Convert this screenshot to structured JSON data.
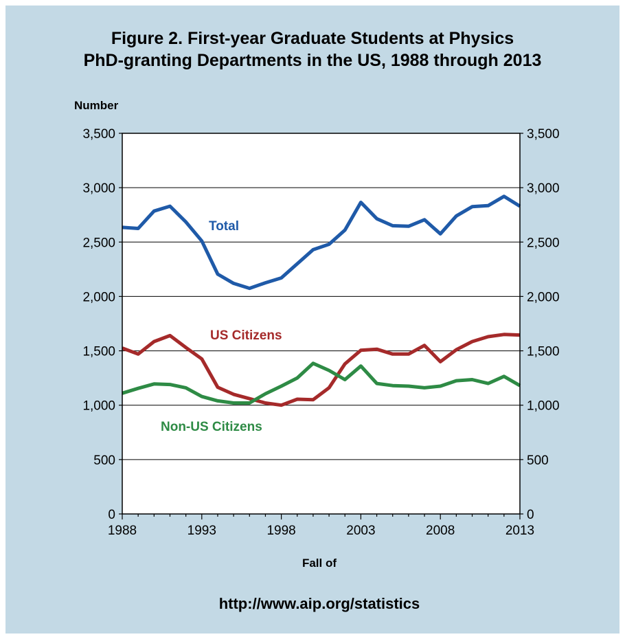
{
  "chart_data": {
    "type": "line",
    "title_line1": "Figure 2.  First-year Graduate Students at Physics",
    "title_line2": "PhD-granting Departments in the US, 1988 through 2013",
    "ylabel": "Number",
    "xlabel": "Fall of",
    "source": "http://www.aip.org/statistics",
    "ylim": [
      0,
      3500
    ],
    "xlim": [
      1988,
      2013
    ],
    "y_ticks": [
      "0",
      "500",
      "1,000",
      "1,500",
      "2,000",
      "2,500",
      "3,000",
      "3,500"
    ],
    "y_tick_values": [
      0,
      500,
      1000,
      1500,
      2000,
      2500,
      3000,
      3500
    ],
    "x_ticks": [
      "1988",
      "1993",
      "1998",
      "2003",
      "2008",
      "2013"
    ],
    "x_tick_values": [
      1988,
      1993,
      1998,
      2003,
      2008,
      2013
    ],
    "grid": "horizontal",
    "x": [
      1988,
      1989,
      1990,
      1991,
      1992,
      1993,
      1994,
      1995,
      1996,
      1997,
      1998,
      1999,
      2000,
      2001,
      2002,
      2003,
      2004,
      2005,
      2006,
      2007,
      2008,
      2009,
      2010,
      2011,
      2012,
      2013
    ],
    "series": [
      {
        "name": "Total",
        "color": "#1f5aa8",
        "values": [
          2635,
          2625,
          2785,
          2830,
          2685,
          2510,
          2205,
          2120,
          2075,
          2125,
          2170,
          2300,
          2430,
          2480,
          2610,
          2865,
          2715,
          2650,
          2645,
          2705,
          2575,
          2740,
          2825,
          2835,
          2920,
          2830
        ]
      },
      {
        "name": "US Citizens",
        "color": "#a52a2a",
        "values": [
          1525,
          1470,
          1585,
          1640,
          1530,
          1425,
          1165,
          1100,
          1060,
          1020,
          1000,
          1055,
          1050,
          1160,
          1380,
          1505,
          1515,
          1470,
          1470,
          1550,
          1400,
          1510,
          1585,
          1630,
          1650,
          1645
        ]
      },
      {
        "name": "Non-US Citizens",
        "color": "#2e8b45",
        "values": [
          1110,
          1155,
          1195,
          1190,
          1160,
          1080,
          1040,
          1020,
          1020,
          1105,
          1175,
          1250,
          1385,
          1320,
          1235,
          1360,
          1200,
          1180,
          1175,
          1160,
          1175,
          1225,
          1235,
          1200,
          1265,
          1180
        ]
      }
    ]
  }
}
